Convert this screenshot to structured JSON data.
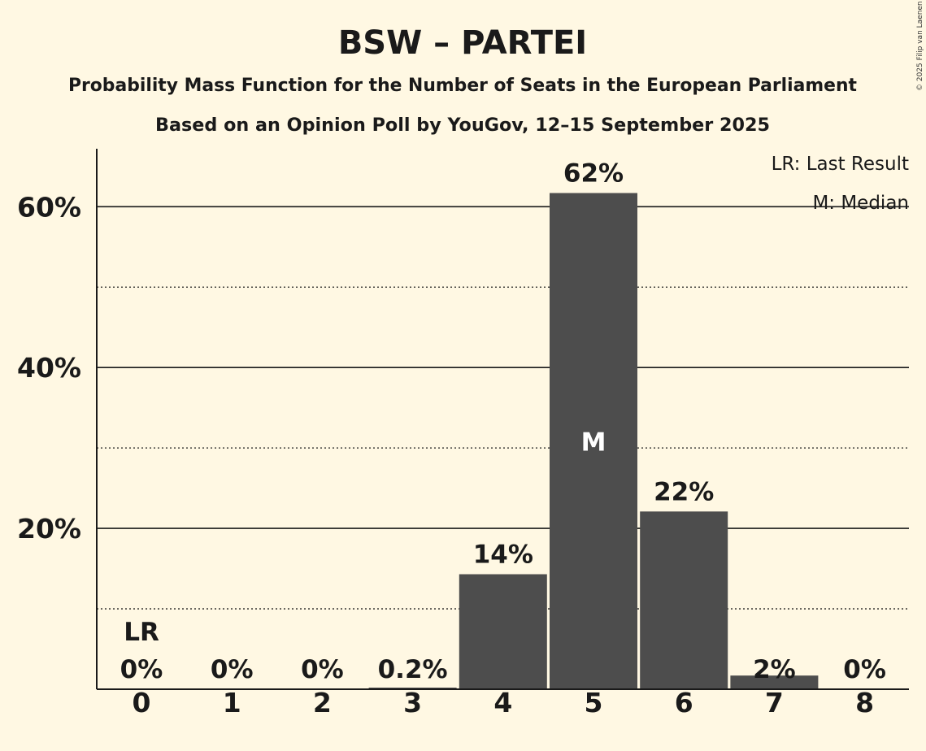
{
  "title": "BSW – PARTEI",
  "subtitle1": "Probability Mass Function for the Number of Seats in the European Parliament",
  "subtitle2": "Based on an Opinion Poll by YouGov, 12–15 September 2025",
  "copyright": "© 2025 Filip van Laenen",
  "legend": {
    "lr": "LR: Last Result",
    "m": "M: Median"
  },
  "colors": {
    "background": "#fff8e3",
    "bar": "#4d4d4d",
    "text": "#1a1a1a"
  },
  "chart_data": {
    "type": "bar",
    "categories": [
      "0",
      "1",
      "2",
      "3",
      "4",
      "5",
      "6",
      "7",
      "8"
    ],
    "values": [
      0,
      0,
      0,
      0.2,
      14.3,
      61.7,
      22.1,
      1.7,
      0
    ],
    "value_labels": [
      "0%",
      "0%",
      "0%",
      "0.2%",
      "14%",
      "62%",
      "22%",
      "2%",
      "0%"
    ],
    "ylim": [
      0,
      67
    ],
    "yticks": [
      20,
      40,
      60
    ],
    "ytick_labels": [
      "20%",
      "40%",
      "60%"
    ],
    "minor_gridlines": [
      10,
      30,
      50
    ],
    "last_result_category": "0",
    "last_result_marker": "LR",
    "median_category": "5",
    "median_marker": "M",
    "grid": true,
    "legend_position": "top-right"
  }
}
